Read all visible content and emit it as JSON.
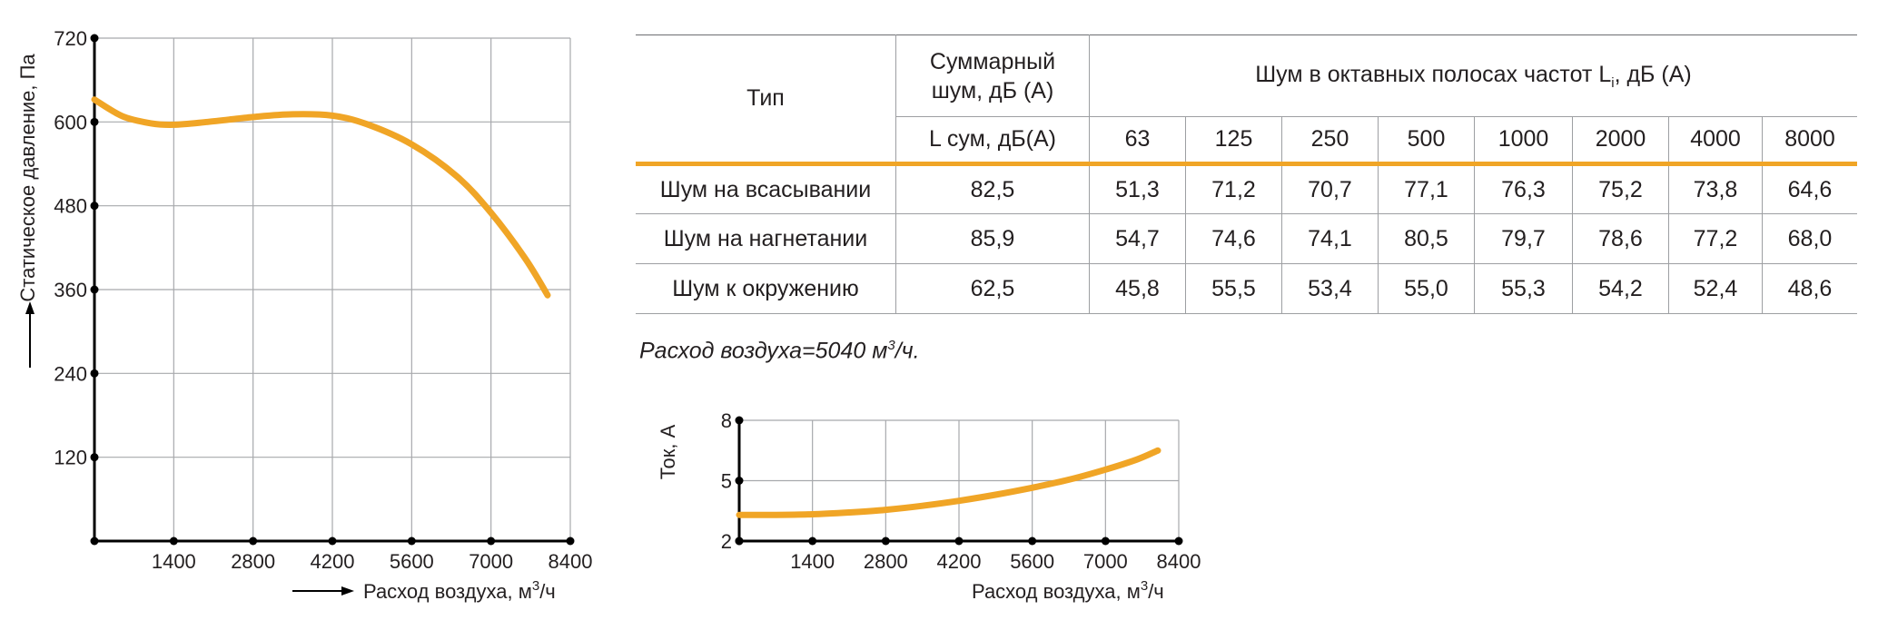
{
  "pressure_chart": {
    "ylabel": "Статическое давление, Па",
    "xlabel_pre": "Расход воздуха, м",
    "xlabel_sup": "3",
    "xlabel_post": "/ч",
    "color": "#f0a526"
  },
  "current_chart": {
    "ylabel": "Ток, А",
    "xlabel_pre": "Расход воздуха, м",
    "xlabel_sup": "3",
    "xlabel_post": "/ч",
    "color": "#f0a526"
  },
  "chart_data": [
    {
      "type": "line",
      "xlim": [
        0,
        8400
      ],
      "ylim": [
        0,
        720
      ],
      "x_ticks": [
        "1400",
        "2800",
        "4200",
        "5600",
        "7000",
        "8400"
      ],
      "y_ticks": [
        "120",
        "240",
        "360",
        "480",
        "600",
        "720"
      ],
      "grid": true,
      "series": [
        {
          "x": [
            0,
            500,
            1000,
            1400,
            2000,
            2800,
            3500,
            4200,
            4800,
            5600,
            6400,
            7000,
            7600,
            8000
          ],
          "y": [
            632,
            608,
            598,
            596,
            600,
            607,
            611,
            609,
            597,
            568,
            522,
            470,
            405,
            352
          ]
        }
      ]
    },
    {
      "type": "line",
      "xlim": [
        0,
        8400
      ],
      "ylim": [
        2,
        8
      ],
      "x_ticks": [
        "1400",
        "2800",
        "4200",
        "5600",
        "7000",
        "8400"
      ],
      "y_ticks": [
        "2",
        "5",
        "8"
      ],
      "grid": true,
      "series": [
        {
          "x": [
            0,
            700,
            1400,
            2100,
            2800,
            3500,
            4200,
            4900,
            5600,
            6300,
            7000,
            7600,
            8000
          ],
          "y": [
            3.3,
            3.3,
            3.33,
            3.42,
            3.55,
            3.75,
            4.0,
            4.3,
            4.65,
            5.05,
            5.55,
            6.05,
            6.5
          ]
        }
      ]
    }
  ],
  "table": {
    "type_header": "Тип",
    "total_header": "Суммарный шум, дБ (А)",
    "octave_header_pre": "Шум в октавных полосах частот L",
    "octave_header_sub": "i",
    "octave_header_post": ", дБ (А)",
    "lsum_header": "L сум, дБ(А)",
    "freqs": [
      "63",
      "125",
      "250",
      "500",
      "1000",
      "2000",
      "4000",
      "8000"
    ],
    "rows": [
      {
        "label": "Шум на всасывании",
        "total": "82,5",
        "values": [
          "51,3",
          "71,2",
          "70,7",
          "77,1",
          "76,3",
          "75,2",
          "73,8",
          "64,6"
        ]
      },
      {
        "label": "Шум на нагнетании",
        "total": "85,9",
        "values": [
          "54,7",
          "74,6",
          "74,1",
          "80,5",
          "79,7",
          "78,6",
          "77,2",
          "68,0"
        ]
      },
      {
        "label": "Шум к окружению",
        "total": "62,5",
        "values": [
          "45,8",
          "55,5",
          "53,4",
          "55,0",
          "55,3",
          "54,2",
          "52,4",
          "48,6"
        ]
      }
    ],
    "flow_note_pre": "Расход воздуха=5040 м",
    "flow_note_sup": "3",
    "flow_note_post": "/ч."
  }
}
